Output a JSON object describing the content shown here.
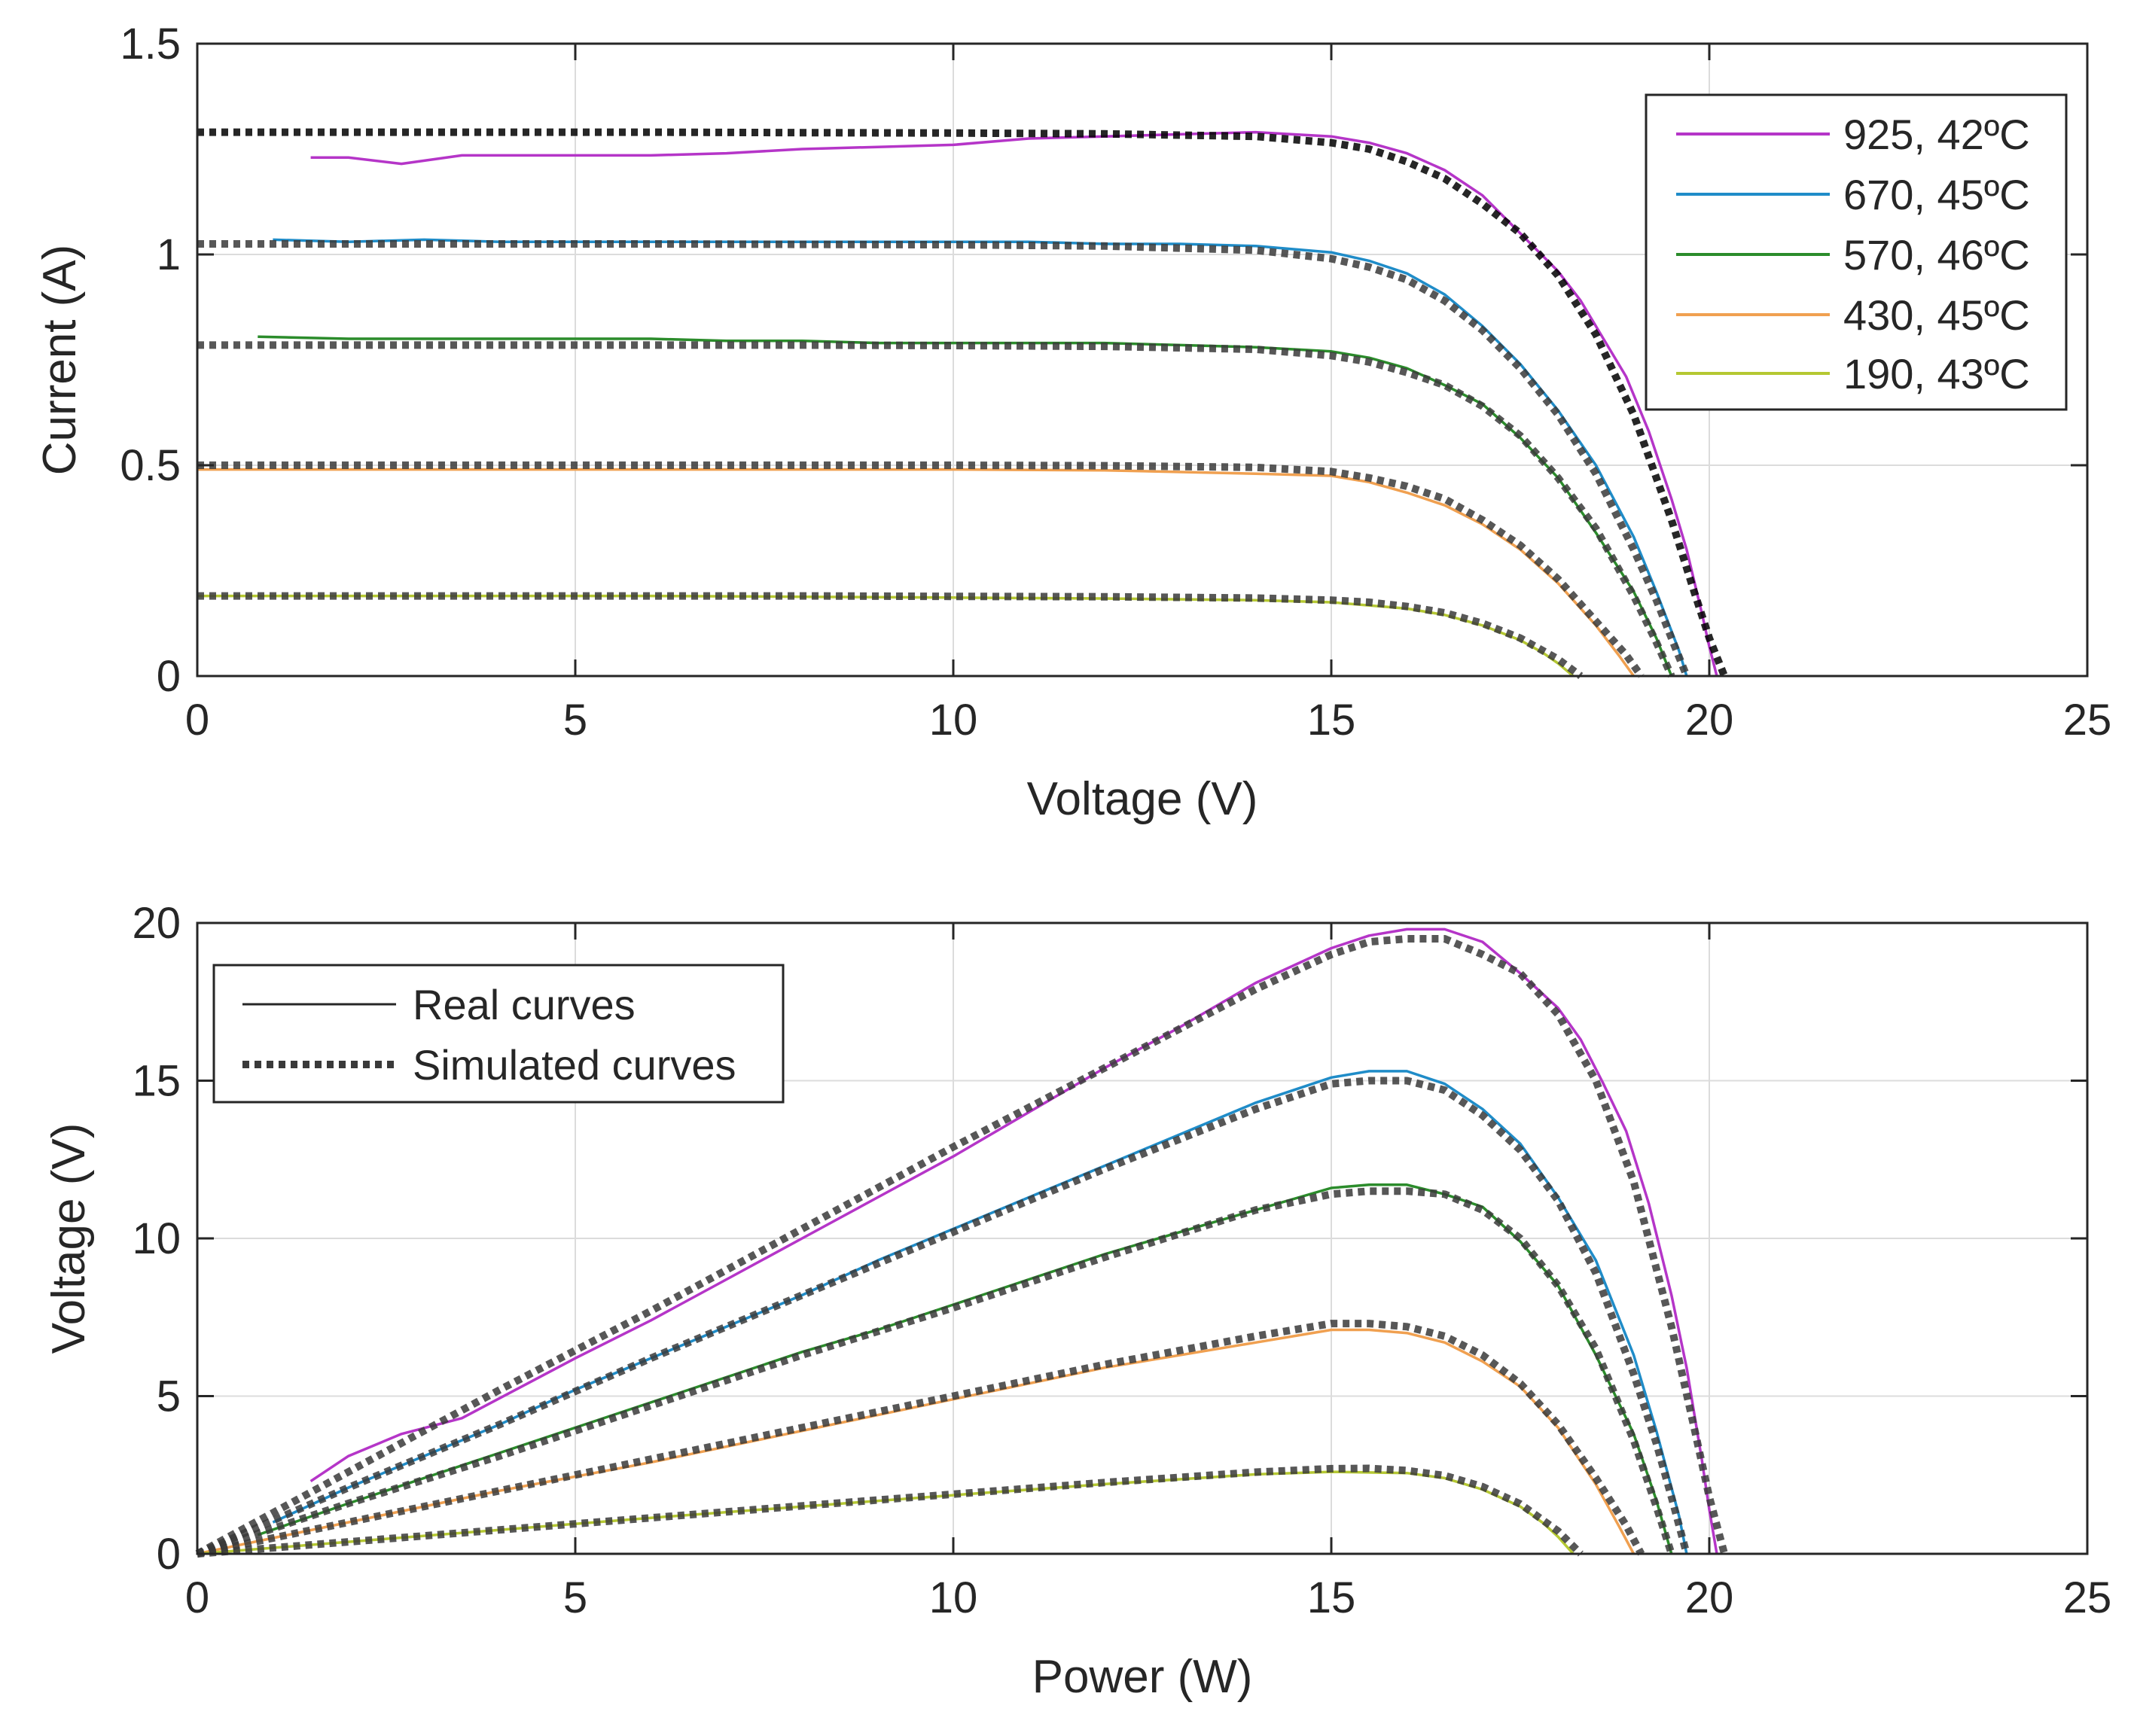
{
  "figure": {
    "panels": [
      {
        "title": "",
        "xlabel": "Voltage (V)",
        "ylabel": "Current (A)"
      },
      {
        "title": "",
        "xlabel": "Power (W)",
        "ylabel": "Voltage (V)"
      }
    ]
  },
  "chart_data": [
    {
      "type": "line",
      "title": "",
      "xlabel": "Voltage (V)",
      "ylabel": "Current (A)",
      "xlim": [
        0,
        25
      ],
      "ylim": [
        0,
        1.5
      ],
      "xticks": [
        0,
        5,
        10,
        15,
        20,
        25
      ],
      "xtick_labels": [
        "0",
        "5",
        "10",
        "15",
        "20",
        "25"
      ],
      "yticks": [
        0,
        0.5,
        1,
        1.5
      ],
      "ytick_labels": [
        "0",
        "0.5",
        "1",
        "1.5"
      ],
      "grid": true,
      "legend_position": "top-right",
      "legend": [
        "925, 42ºC",
        "670, 45ºC",
        "570, 46ºC",
        "430, 45ºC",
        "190, 43ºC"
      ],
      "series": [
        {
          "name": "925, 42ºC",
          "kind": "real",
          "color": "#b535c8",
          "x": [
            1.5,
            2.0,
            2.7,
            3.5,
            5,
            6,
            7,
            8,
            9,
            10,
            11,
            12,
            13,
            14,
            15,
            15.5,
            16,
            16.5,
            17,
            17.5,
            18,
            18.3,
            18.6,
            18.9,
            19.2,
            19.5,
            19.7,
            19.9,
            20.0,
            20.1
          ],
          "y": [
            1.23,
            1.23,
            1.215,
            1.235,
            1.235,
            1.235,
            1.24,
            1.25,
            1.255,
            1.26,
            1.275,
            1.28,
            1.285,
            1.29,
            1.28,
            1.265,
            1.24,
            1.2,
            1.14,
            1.05,
            0.96,
            0.89,
            0.8,
            0.71,
            0.58,
            0.42,
            0.3,
            0.15,
            0.07,
            0.0
          ]
        },
        {
          "name": "925, 42ºC",
          "kind": "simulated",
          "color": "#000000",
          "x": [
            0,
            2,
            4,
            6,
            8,
            10,
            12,
            14,
            15,
            15.5,
            16,
            16.5,
            17,
            17.5,
            18,
            18.5,
            19,
            19.5,
            19.8,
            20.0,
            20.2
          ],
          "y": [
            1.29,
            1.29,
            1.29,
            1.29,
            1.289,
            1.288,
            1.286,
            1.28,
            1.265,
            1.25,
            1.22,
            1.18,
            1.12,
            1.05,
            0.95,
            0.81,
            0.62,
            0.37,
            0.2,
            0.09,
            0.0
          ]
        },
        {
          "name": "670, 45ºC",
          "kind": "real",
          "color": "#1f8cc8",
          "x": [
            1.0,
            2,
            3,
            4,
            5,
            6,
            7,
            8,
            9,
            10,
            11,
            12,
            13,
            14,
            15,
            15.5,
            16,
            16.5,
            17,
            17.5,
            18,
            18.5,
            19,
            19.3,
            19.6,
            19.7
          ],
          "y": [
            1.035,
            1.03,
            1.035,
            1.03,
            1.03,
            1.03,
            1.03,
            1.03,
            1.03,
            1.03,
            1.03,
            1.025,
            1.025,
            1.02,
            1.005,
            0.985,
            0.955,
            0.905,
            0.83,
            0.74,
            0.63,
            0.5,
            0.33,
            0.2,
            0.06,
            0.0
          ]
        },
        {
          "name": "670, 45ºC",
          "kind": "simulated",
          "color": "#3a3a3a",
          "x": [
            0,
            2,
            4,
            6,
            8,
            10,
            12,
            14,
            15,
            15.5,
            16,
            16.5,
            17,
            17.5,
            18,
            18.5,
            19,
            19.3,
            19.5,
            19.7
          ],
          "y": [
            1.025,
            1.025,
            1.025,
            1.025,
            1.024,
            1.023,
            1.02,
            1.01,
            0.99,
            0.97,
            0.94,
            0.89,
            0.82,
            0.73,
            0.62,
            0.48,
            0.3,
            0.18,
            0.09,
            0.0
          ]
        },
        {
          "name": "570, 46ºC",
          "kind": "real",
          "color": "#2b8c2b",
          "x": [
            0.8,
            2,
            3,
            4,
            5,
            6,
            7,
            8,
            9,
            10,
            11,
            12,
            13,
            14,
            15,
            15.5,
            16,
            16.5,
            17,
            17.5,
            18,
            18.5,
            19,
            19.3,
            19.5
          ],
          "y": [
            0.805,
            0.8,
            0.8,
            0.8,
            0.8,
            0.8,
            0.795,
            0.795,
            0.79,
            0.79,
            0.79,
            0.79,
            0.785,
            0.78,
            0.77,
            0.755,
            0.73,
            0.69,
            0.645,
            0.565,
            0.47,
            0.34,
            0.2,
            0.09,
            0.0
          ]
        },
        {
          "name": "570, 46ºC",
          "kind": "simulated",
          "color": "#3a3a3a",
          "x": [
            0,
            2,
            4,
            6,
            8,
            10,
            12,
            14,
            15,
            15.5,
            16,
            16.5,
            17,
            17.5,
            18,
            18.5,
            19,
            19.3,
            19.5
          ],
          "y": [
            0.785,
            0.785,
            0.785,
            0.785,
            0.785,
            0.784,
            0.782,
            0.775,
            0.76,
            0.745,
            0.72,
            0.69,
            0.64,
            0.57,
            0.47,
            0.35,
            0.19,
            0.08,
            0.0
          ]
        },
        {
          "name": "430, 45ºC",
          "kind": "real",
          "color": "#f0a050",
          "x": [
            0,
            2,
            4,
            6,
            8,
            10,
            12,
            14,
            15,
            15.5,
            16,
            16.5,
            17,
            17.5,
            18,
            18.5,
            18.8,
            19.0
          ],
          "y": [
            0.49,
            0.49,
            0.49,
            0.49,
            0.49,
            0.49,
            0.488,
            0.48,
            0.475,
            0.46,
            0.435,
            0.405,
            0.36,
            0.3,
            0.22,
            0.12,
            0.05,
            0.0
          ]
        },
        {
          "name": "430, 45ºC",
          "kind": "simulated",
          "color": "#3a3a3a",
          "x": [
            0,
            2,
            4,
            6,
            8,
            10,
            12,
            14,
            15,
            15.5,
            16,
            16.5,
            17,
            17.5,
            18,
            18.5,
            18.9,
            19.1
          ],
          "y": [
            0.5,
            0.5,
            0.5,
            0.5,
            0.5,
            0.5,
            0.499,
            0.495,
            0.485,
            0.47,
            0.45,
            0.42,
            0.37,
            0.31,
            0.23,
            0.13,
            0.05,
            0.0
          ]
        },
        {
          "name": "190, 43ºC",
          "kind": "real",
          "color": "#b5c832",
          "x": [
            0,
            2,
            4,
            6,
            8,
            10,
            12,
            14,
            15,
            16,
            16.5,
            17,
            17.5,
            17.8,
            18.0,
            18.2
          ],
          "y": [
            0.19,
            0.19,
            0.19,
            0.19,
            0.188,
            0.186,
            0.184,
            0.18,
            0.175,
            0.16,
            0.145,
            0.12,
            0.085,
            0.055,
            0.03,
            0.0
          ]
        },
        {
          "name": "190, 43ºC",
          "kind": "simulated",
          "color": "#3a3a3a",
          "x": [
            0,
            2,
            4,
            6,
            8,
            10,
            12,
            14,
            15,
            15.5,
            16,
            16.5,
            17,
            17.5,
            18,
            18.3
          ],
          "y": [
            0.19,
            0.19,
            0.19,
            0.19,
            0.19,
            0.189,
            0.188,
            0.185,
            0.18,
            0.175,
            0.165,
            0.15,
            0.125,
            0.09,
            0.04,
            0.0
          ]
        }
      ]
    },
    {
      "type": "line",
      "title": "",
      "xlabel": "Power (W)",
      "ylabel": "Voltage (V)",
      "xlim": [
        0,
        25
      ],
      "ylim": [
        0,
        20
      ],
      "xticks": [
        0,
        5,
        10,
        15,
        20,
        25
      ],
      "xtick_labels": [
        "0",
        "5",
        "10",
        "15",
        "20",
        "25"
      ],
      "yticks": [
        0,
        5,
        10,
        15,
        20
      ],
      "ytick_labels": [
        "0",
        "5",
        "10",
        "15",
        "20"
      ],
      "grid": true,
      "legend_position": "top-left",
      "legend": [
        "Real curves",
        "Simulated curves"
      ],
      "series": [
        {
          "name": "925, 42ºC",
          "kind": "real",
          "color": "#b535c8",
          "x": [
            1.5,
            2.0,
            2.7,
            3.5,
            5,
            6,
            7,
            8,
            9,
            10,
            11,
            12,
            13,
            14,
            15,
            15.5,
            16,
            16.5,
            17,
            17.5,
            18,
            18.3,
            18.6,
            18.9,
            19.2,
            19.5,
            19.7,
            19.9,
            20.0,
            20.1
          ],
          "y": [
            2.3,
            3.1,
            3.8,
            4.3,
            6.2,
            7.4,
            8.7,
            10.0,
            11.3,
            12.6,
            14.0,
            15.4,
            16.7,
            18.1,
            19.2,
            19.6,
            19.8,
            19.8,
            19.4,
            18.4,
            17.3,
            16.3,
            14.9,
            13.4,
            11.1,
            8.2,
            5.9,
            3.0,
            1.4,
            0.0
          ]
        },
        {
          "name": "925, 42ºC",
          "kind": "simulated",
          "color": "#3a3a3a",
          "x": [
            0,
            2,
            4,
            6,
            8,
            10,
            12,
            14,
            15,
            15.5,
            16,
            16.5,
            17,
            17.5,
            18,
            18.5,
            19,
            19.5,
            19.8,
            20.0,
            20.2
          ],
          "y": [
            0.0,
            2.6,
            5.2,
            7.7,
            10.3,
            12.9,
            15.4,
            17.9,
            19.0,
            19.4,
            19.5,
            19.5,
            19.0,
            18.4,
            17.1,
            15.0,
            11.8,
            7.2,
            4.0,
            1.8,
            0.0
          ]
        },
        {
          "name": "670, 45ºC",
          "kind": "real",
          "color": "#1f8cc8",
          "x": [
            1.0,
            2,
            3,
            4,
            5,
            6,
            7,
            8,
            9,
            10,
            11,
            12,
            13,
            14,
            15,
            15.5,
            16,
            16.5,
            17,
            17.5,
            18,
            18.5,
            19,
            19.3,
            19.6,
            19.7
          ],
          "y": [
            1.0,
            2.1,
            3.1,
            4.1,
            5.2,
            6.2,
            7.2,
            8.2,
            9.3,
            10.3,
            11.3,
            12.3,
            13.3,
            14.3,
            15.1,
            15.3,
            15.3,
            14.9,
            14.1,
            13.0,
            11.3,
            9.3,
            6.3,
            3.9,
            1.2,
            0.0
          ]
        },
        {
          "name": "670, 45ºC",
          "kind": "simulated",
          "color": "#3a3a3a",
          "x": [
            0,
            2,
            4,
            6,
            8,
            10,
            12,
            14,
            15,
            15.5,
            16,
            16.5,
            17,
            17.5,
            18,
            18.5,
            19,
            19.3,
            19.5,
            19.7
          ],
          "y": [
            0.0,
            2.1,
            4.1,
            6.2,
            8.2,
            10.2,
            12.2,
            14.1,
            14.9,
            15.0,
            15.0,
            14.7,
            13.9,
            12.8,
            11.2,
            8.9,
            5.7,
            3.5,
            1.8,
            0.0
          ]
        },
        {
          "name": "570, 46ºC",
          "kind": "real",
          "color": "#2b8c2b",
          "x": [
            0.8,
            2,
            3,
            4,
            5,
            6,
            7,
            8,
            9,
            10,
            11,
            12,
            13,
            14,
            15,
            15.5,
            16,
            16.5,
            17,
            17.5,
            18,
            18.5,
            19,
            19.3,
            19.5
          ],
          "y": [
            0.6,
            1.6,
            2.4,
            3.2,
            4.0,
            4.8,
            5.6,
            6.4,
            7.1,
            7.9,
            8.7,
            9.5,
            10.2,
            10.9,
            11.6,
            11.7,
            11.7,
            11.4,
            11.0,
            9.9,
            8.5,
            6.3,
            3.8,
            1.7,
            0.0
          ]
        },
        {
          "name": "570, 46ºC",
          "kind": "simulated",
          "color": "#3a3a3a",
          "x": [
            0,
            2,
            4,
            6,
            8,
            10,
            12,
            14,
            15,
            15.5,
            16,
            16.5,
            17,
            17.5,
            18,
            18.5,
            19,
            19.3,
            19.5
          ],
          "y": [
            0.0,
            1.6,
            3.1,
            4.7,
            6.3,
            7.8,
            9.4,
            10.9,
            11.4,
            11.5,
            11.5,
            11.4,
            10.9,
            10.0,
            8.5,
            6.5,
            3.6,
            1.5,
            0.0
          ]
        },
        {
          "name": "430, 45ºC",
          "kind": "real",
          "color": "#f0a050",
          "x": [
            0,
            2,
            4,
            6,
            8,
            10,
            12,
            14,
            15,
            15.5,
            16,
            16.5,
            17,
            17.5,
            18,
            18.5,
            18.8,
            19.0
          ],
          "y": [
            0.0,
            1.0,
            2.0,
            2.9,
            3.9,
            4.9,
            5.9,
            6.7,
            7.1,
            7.1,
            7.0,
            6.7,
            6.1,
            5.3,
            4.0,
            2.2,
            0.9,
            0.0
          ]
        },
        {
          "name": "430, 45ºC",
          "kind": "simulated",
          "color": "#3a3a3a",
          "x": [
            0,
            2,
            4,
            6,
            8,
            10,
            12,
            14,
            15,
            15.5,
            16,
            16.5,
            17,
            17.5,
            18,
            18.5,
            18.9,
            19.1
          ],
          "y": [
            0.0,
            1.0,
            2.0,
            3.0,
            4.0,
            5.0,
            6.0,
            6.9,
            7.3,
            7.3,
            7.2,
            6.9,
            6.3,
            5.4,
            4.1,
            2.4,
            0.9,
            0.0
          ]
        },
        {
          "name": "190, 43ºC",
          "kind": "real",
          "color": "#b5c832",
          "x": [
            0,
            2,
            4,
            6,
            8,
            10,
            12,
            14,
            15,
            16,
            16.5,
            17,
            17.5,
            17.8,
            18.0,
            18.2
          ],
          "y": [
            0.0,
            0.38,
            0.76,
            1.14,
            1.5,
            1.86,
            2.21,
            2.52,
            2.6,
            2.56,
            2.4,
            2.04,
            1.5,
            0.98,
            0.54,
            0.0
          ]
        },
        {
          "name": "190, 43ºC",
          "kind": "simulated",
          "color": "#3a3a3a",
          "x": [
            0,
            2,
            4,
            6,
            8,
            10,
            12,
            14,
            15,
            15.5,
            16,
            16.5,
            17,
            17.5,
            18,
            18.3
          ],
          "y": [
            0.0,
            0.38,
            0.76,
            1.14,
            1.52,
            1.89,
            2.26,
            2.59,
            2.7,
            2.71,
            2.64,
            2.48,
            2.13,
            1.58,
            0.72,
            0.0
          ]
        }
      ]
    }
  ]
}
